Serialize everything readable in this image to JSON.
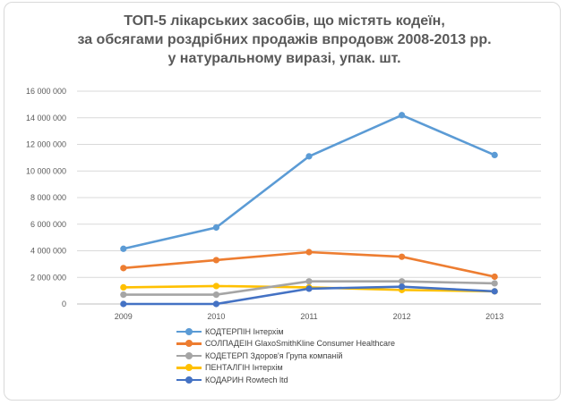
{
  "chart_data": {
    "type": "line",
    "title": [
      "ТОП-5 лікарських засобів, що містять кодеїн,",
      "за обсягами роздрібних продажів впродовж 2008-2013 рр.",
      "у натуральному виразі, упак. шт."
    ],
    "categories": [
      "2009",
      "2010",
      "2011",
      "2012",
      "2013"
    ],
    "ylim": [
      0,
      16000000
    ],
    "yticks": [
      0,
      2000000,
      4000000,
      6000000,
      8000000,
      10000000,
      12000000,
      14000000,
      16000000
    ],
    "ytick_labels": [
      "0",
      "2 000 000",
      "4 000 000",
      "6 000 000",
      "8 000 000",
      "10 000 000",
      "12 000 000",
      "14 000 000",
      "16 000 000"
    ],
    "grid": true,
    "legend_position": "bottom",
    "series": [
      {
        "name": "КОДТЕРПІН Інтерхім",
        "color": "#5b9bd5",
        "values": [
          4150000,
          5750000,
          11100000,
          14200000,
          11200000
        ]
      },
      {
        "name": "СОЛПАДЕІН GlaxoSmithKline Consumer Healthcare",
        "color": "#ed7d31",
        "values": [
          2700000,
          3300000,
          3900000,
          3550000,
          2050000
        ]
      },
      {
        "name": "КОДЕТЕРП Здоров'я Група компаній",
        "color": "#a5a5a5",
        "values": [
          700000,
          700000,
          1700000,
          1700000,
          1550000
        ]
      },
      {
        "name": "ПЕНТАЛГІН Інтерхім",
        "color": "#ffc000",
        "values": [
          1250000,
          1350000,
          1250000,
          1050000,
          950000
        ]
      },
      {
        "name": "КОДАРИН Rowtech ltd",
        "color": "#4472c4",
        "values": [
          0,
          0,
          1150000,
          1300000,
          950000
        ]
      }
    ]
  }
}
